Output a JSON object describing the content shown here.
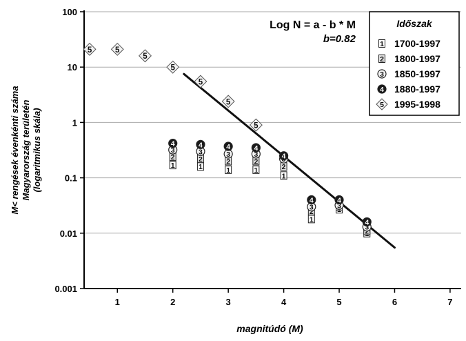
{
  "chart_data": {
    "type": "scatter",
    "x_axis": {
      "label": "magnitúdó (M)",
      "range": [
        0.4,
        7.2
      ],
      "ticks": [
        1,
        2,
        3,
        4,
        5,
        6,
        7
      ]
    },
    "y_axis": {
      "label_lines": [
        "M< rengések évenkénti száma",
        "Magyarország területén",
        "(logaritmikus skála)"
      ],
      "scale": "log",
      "range": [
        0.001,
        100
      ],
      "ticks": [
        0.001,
        0.01,
        0.1,
        1,
        10,
        100
      ],
      "tick_labels": [
        "0.001",
        "0.01",
        "0.1",
        "1",
        "10",
        "100"
      ]
    },
    "grid": "horizontal",
    "formula": {
      "line1": "Log N = a - b * M",
      "line2": "b=0.82"
    },
    "fit_line": {
      "x": [
        2.2,
        6.0
      ],
      "y": [
        7.5,
        0.0055
      ]
    },
    "legend": {
      "title": "Időszak",
      "placement": "top-right",
      "entries": [
        {
          "symbol": "1",
          "label": "1700-1997",
          "shape": "square"
        },
        {
          "symbol": "2",
          "label": "1800-1997",
          "shape": "square-dark"
        },
        {
          "symbol": "3",
          "label": "1850-1997",
          "shape": "circle"
        },
        {
          "symbol": "4",
          "label": "1880-1997",
          "shape": "circle-dark"
        },
        {
          "symbol": "5",
          "label": "1995-1998",
          "shape": "diamond"
        }
      ]
    },
    "series": [
      {
        "symbol": "1",
        "x": [
          2.0,
          2.5,
          3.0,
          3.5,
          4.0,
          4.5,
          5.0,
          5.5
        ],
        "y": [
          0.17,
          0.16,
          0.14,
          0.14,
          0.11,
          0.018,
          0.027,
          0.01
        ]
      },
      {
        "symbol": "2",
        "x": [
          2.0,
          2.5,
          3.0,
          3.5,
          4.0,
          4.5,
          5.0,
          5.5
        ],
        "y": [
          0.24,
          0.22,
          0.2,
          0.2,
          0.16,
          0.025,
          0.03,
          0.011
        ]
      },
      {
        "symbol": "3",
        "x": [
          2.0,
          2.5,
          3.0,
          3.5,
          4.0,
          4.5,
          5.0,
          5.5
        ],
        "y": [
          0.32,
          0.3,
          0.27,
          0.27,
          0.22,
          0.03,
          0.032,
          0.013
        ]
      },
      {
        "symbol": "4",
        "x": [
          2.0,
          2.5,
          3.0,
          3.5,
          4.0,
          4.5,
          5.0,
          5.5
        ],
        "y": [
          0.42,
          0.4,
          0.37,
          0.35,
          0.25,
          0.04,
          0.04,
          0.016
        ]
      },
      {
        "symbol": "5",
        "x": [
          0.5,
          1.0,
          1.5,
          2.0,
          2.5,
          3.0,
          3.5
        ],
        "y": [
          21,
          21,
          16,
          10,
          5.5,
          2.4,
          0.9
        ]
      }
    ],
    "colors": {
      "line": "#111111",
      "grid": "#aaaaaa",
      "dark_marker": "#1a1a1a",
      "light_marker": "#f2f2f2"
    }
  }
}
